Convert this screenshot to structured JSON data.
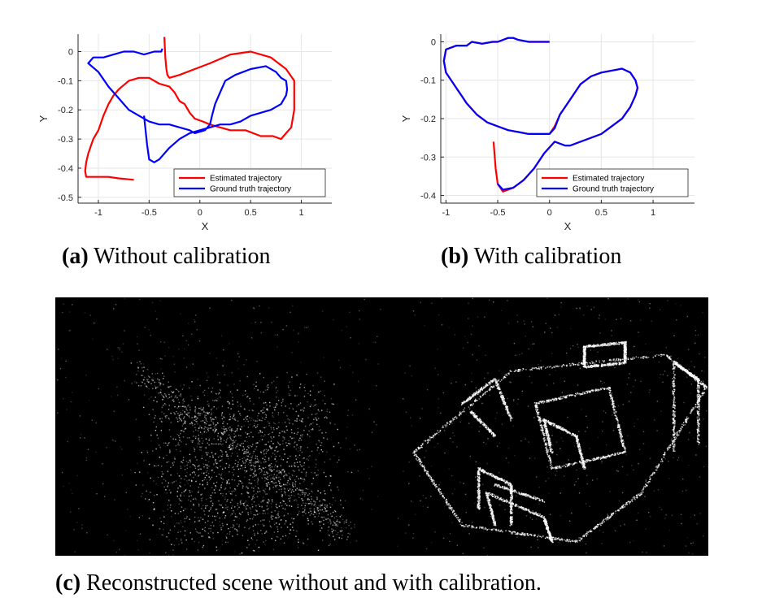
{
  "chart_data": [
    {
      "type": "line",
      "xlabel": "X",
      "ylabel": "Y",
      "xlim": [
        -1.2,
        1.3
      ],
      "ylim": [
        -0.52,
        0.06
      ],
      "xticks": [
        "-1",
        "-0.5",
        "0",
        "0.5",
        "1"
      ],
      "xtick_values": [
        -1,
        -0.5,
        0,
        0.5,
        1
      ],
      "yticks": [
        "0",
        "-0.1",
        "-0.2",
        "-0.3",
        "-0.4",
        "-0.5"
      ],
      "ytick_values": [
        0,
        -0.1,
        -0.2,
        -0.3,
        -0.4,
        -0.5
      ],
      "grid": true,
      "legend": "bottom-right",
      "series": [
        {
          "name": "Estimated trajectory",
          "color": "#ff0000",
          "x": [
            -0.35,
            -0.34,
            -0.33,
            -0.32,
            -0.3,
            -0.2,
            -0.05,
            0.1,
            0.3,
            0.5,
            0.7,
            0.85,
            0.93,
            0.93,
            0.9,
            0.85,
            0.8,
            0.72,
            0.6,
            0.45,
            0.3,
            0.2,
            0.1,
            0.03,
            -0.05,
            -0.1,
            -0.15,
            -0.2,
            -0.25,
            -0.3,
            -0.4,
            -0.5,
            -0.6,
            -0.7,
            -0.8,
            -0.85,
            -0.9,
            -0.95,
            -1.0,
            -1.05,
            -1.1,
            -1.12,
            -1.13,
            -1.12,
            -0.9,
            -0.8,
            -0.65
          ],
          "y": [
            0.05,
            -0.02,
            -0.06,
            -0.08,
            -0.09,
            -0.08,
            -0.06,
            -0.04,
            -0.01,
            0.0,
            -0.02,
            -0.06,
            -0.1,
            -0.2,
            -0.26,
            -0.28,
            -0.3,
            -0.29,
            -0.29,
            -0.27,
            -0.27,
            -0.26,
            -0.25,
            -0.24,
            -0.23,
            -0.21,
            -0.18,
            -0.17,
            -0.14,
            -0.12,
            -0.11,
            -0.09,
            -0.09,
            -0.1,
            -0.13,
            -0.15,
            -0.18,
            -0.22,
            -0.27,
            -0.3,
            -0.35,
            -0.38,
            -0.41,
            -0.43,
            -0.43,
            -0.435,
            -0.44
          ]
        },
        {
          "name": "Ground truth trajectory",
          "color": "#0000ff",
          "x": [
            -0.37,
            -0.38,
            -0.45,
            -0.55,
            -0.65,
            -0.75,
            -0.85,
            -0.95,
            -1.05,
            -1.1,
            -1.0,
            -0.9,
            -0.8,
            -0.7,
            -0.6,
            -0.5,
            -0.4,
            -0.3,
            -0.2,
            -0.1,
            -0.05,
            0.05,
            0.1,
            0.12,
            0.15,
            0.2,
            0.25,
            0.35,
            0.5,
            0.65,
            0.75,
            0.8,
            0.85,
            0.86,
            0.85,
            0.8,
            0.7,
            0.6,
            0.5,
            0.4,
            0.3,
            0.2,
            0.1,
            0.0,
            -0.1,
            -0.2,
            -0.3,
            -0.4,
            -0.45,
            -0.5,
            -0.52,
            -0.55
          ],
          "y": [
            0.01,
            0.0,
            0.0,
            -0.01,
            0.0,
            0.0,
            -0.01,
            -0.02,
            -0.02,
            -0.04,
            -0.07,
            -0.12,
            -0.16,
            -0.2,
            -0.22,
            -0.24,
            -0.25,
            -0.25,
            -0.26,
            -0.27,
            -0.28,
            -0.27,
            -0.25,
            -0.22,
            -0.18,
            -0.14,
            -0.1,
            -0.08,
            -0.06,
            -0.05,
            -0.07,
            -0.09,
            -0.1,
            -0.13,
            -0.15,
            -0.18,
            -0.2,
            -0.21,
            -0.22,
            -0.24,
            -0.25,
            -0.25,
            -0.26,
            -0.27,
            -0.28,
            -0.3,
            -0.33,
            -0.37,
            -0.38,
            -0.37,
            -0.32,
            -0.22
          ]
        }
      ]
    },
    {
      "type": "line",
      "xlabel": "X",
      "ylabel": "Y",
      "xlim": [
        -1.05,
        1.4
      ],
      "ylim": [
        -0.42,
        0.02
      ],
      "xticks": [
        "-1",
        "-0.5",
        "0",
        "0.5",
        "1"
      ],
      "xtick_values": [
        -1,
        -0.5,
        0,
        0.5,
        1
      ],
      "yticks": [
        "0",
        "-0.1",
        "-0.2",
        "-0.3",
        "-0.4"
      ],
      "ytick_values": [
        0,
        -0.1,
        -0.2,
        -0.3,
        -0.4
      ],
      "grid": true,
      "legend": "bottom-right",
      "series": [
        {
          "name": "Estimated trajectory",
          "color": "#ff0000",
          "x": [
            0.0,
            -0.1,
            -0.2,
            -0.3,
            -0.35,
            -0.4,
            -0.45,
            -0.5,
            -0.55,
            -0.65,
            -0.75,
            -0.8,
            -0.9,
            -1.0,
            -1.02,
            -1.0,
            -0.95,
            -0.9,
            -0.85,
            -0.8,
            -0.7,
            -0.6,
            -0.5,
            -0.4,
            -0.3,
            -0.2,
            -0.1,
            0.0,
            0.05,
            0.1,
            0.2,
            0.3,
            0.4,
            0.5,
            0.6,
            0.7,
            0.78,
            0.83,
            0.85,
            0.83,
            0.78,
            0.7,
            0.6,
            0.5,
            0.4,
            0.3,
            0.2,
            0.15,
            0.05,
            -0.05,
            -0.15,
            -0.25,
            -0.35,
            -0.45,
            -0.5,
            -0.52,
            -0.54
          ],
          "y": [
            0.0,
            0.0,
            0.0,
            0.005,
            0.01,
            0.01,
            0.005,
            0.0,
            0.0,
            -0.005,
            0.0,
            -0.01,
            -0.01,
            -0.02,
            -0.05,
            -0.08,
            -0.1,
            -0.12,
            -0.14,
            -0.16,
            -0.19,
            -0.21,
            -0.22,
            -0.23,
            -0.235,
            -0.24,
            -0.24,
            -0.24,
            -0.22,
            -0.19,
            -0.15,
            -0.11,
            -0.09,
            -0.08,
            -0.075,
            -0.07,
            -0.08,
            -0.1,
            -0.12,
            -0.14,
            -0.17,
            -0.2,
            -0.22,
            -0.24,
            -0.25,
            -0.26,
            -0.27,
            -0.27,
            -0.26,
            -0.29,
            -0.33,
            -0.36,
            -0.38,
            -0.39,
            -0.37,
            -0.33,
            -0.26
          ]
        },
        {
          "name": "Ground truth trajectory",
          "color": "#0000ff",
          "x": [
            0.0,
            -0.1,
            -0.2,
            -0.3,
            -0.35,
            -0.4,
            -0.45,
            -0.5,
            -0.55,
            -0.65,
            -0.75,
            -0.8,
            -0.9,
            -1.0,
            -1.02,
            -1.0,
            -0.95,
            -0.9,
            -0.85,
            -0.8,
            -0.7,
            -0.6,
            -0.5,
            -0.4,
            -0.3,
            -0.2,
            -0.1,
            0.0,
            0.05,
            0.1,
            0.2,
            0.3,
            0.4,
            0.5,
            0.6,
            0.7,
            0.78,
            0.83,
            0.85,
            0.83,
            0.78,
            0.7,
            0.6,
            0.5,
            0.4,
            0.3,
            0.2,
            0.15,
            0.05,
            -0.05,
            -0.15,
            -0.25,
            -0.35,
            -0.45,
            -0.5
          ],
          "y": [
            0.0,
            0.0,
            0.0,
            0.005,
            0.01,
            0.01,
            0.005,
            0.0,
            0.0,
            -0.005,
            0.0,
            -0.01,
            -0.01,
            -0.02,
            -0.05,
            -0.08,
            -0.1,
            -0.12,
            -0.14,
            -0.16,
            -0.19,
            -0.21,
            -0.22,
            -0.23,
            -0.235,
            -0.24,
            -0.24,
            -0.24,
            -0.225,
            -0.19,
            -0.15,
            -0.11,
            -0.09,
            -0.08,
            -0.075,
            -0.07,
            -0.08,
            -0.1,
            -0.12,
            -0.14,
            -0.17,
            -0.2,
            -0.22,
            -0.24,
            -0.25,
            -0.26,
            -0.27,
            -0.27,
            -0.26,
            -0.29,
            -0.33,
            -0.36,
            -0.38,
            -0.385,
            -0.37
          ]
        }
      ]
    }
  ],
  "captions": {
    "a_label": "(a)",
    "a_text": "Without calibration",
    "b_label": "(b)",
    "b_text": "With calibration",
    "c_label": "(c)",
    "c_text": "Reconstructed scene without and with calibration."
  },
  "scene": {
    "background_color": "#000000",
    "point_color": "#ffffff"
  }
}
